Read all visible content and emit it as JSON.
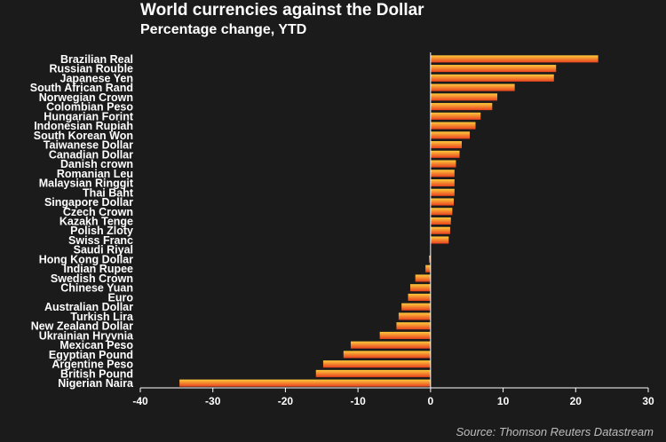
{
  "header": {
    "title": "World currencies against the Dollar",
    "subtitle": "Percentage change, YTD"
  },
  "footer": {
    "source": "Source: Thomson Reuters Datastream"
  },
  "colors": {
    "background": "#1b1b1b",
    "bar_light": "#ffc93c",
    "bar_dark": "#e8421f",
    "axis": "#ffffff"
  },
  "chart_data": {
    "type": "bar",
    "orientation": "horizontal",
    "title": "World currencies against the Dollar",
    "subtitle": "Percentage change, YTD",
    "xlabel": "",
    "ylabel": "",
    "xlim": [
      -40,
      30
    ],
    "xticks": [
      -40,
      -30,
      -20,
      -10,
      0,
      10,
      20,
      30
    ],
    "grid": false,
    "legend": "none",
    "categories": [
      "Brazilian Real",
      "Russian Rouble",
      "Japanese Yen",
      "South African Rand",
      "Norwegian Crown",
      "Colombian Peso",
      "Hungarian Forint",
      "Indonesian Rupiah",
      "South Korean Won",
      "Taiwanese Dollar",
      "Canadian Dollar",
      "Danish crown",
      "Romanian Leu",
      "Malaysian Ringgit",
      "Thai Baht",
      "Singapore Dollar",
      "Czech Crown",
      "Kazakh Tenge",
      "Polish Zloty",
      "Swiss Franc",
      "Saudi Riyal",
      "Hong Kong Dollar",
      "Indian Rupee",
      "Swedish Crown",
      "Chinese Yuan",
      "Euro",
      "Australian Dollar",
      "Turkish Lira",
      "New Zealand Dollar",
      "Ukrainian Hryvnia",
      "Mexican Peso",
      "Egyptian Pound",
      "Argentine Peso",
      "British Pound",
      "Nigerian Naira"
    ],
    "values": [
      23.1,
      17.3,
      17.0,
      11.6,
      9.2,
      8.5,
      6.9,
      6.2,
      5.4,
      4.3,
      4.0,
      3.5,
      3.3,
      3.3,
      3.3,
      3.2,
      3.0,
      2.8,
      2.7,
      2.5,
      0.0,
      -0.2,
      -0.7,
      -2.1,
      -2.8,
      -3.1,
      -4.0,
      -4.4,
      -4.7,
      -7.0,
      -11.0,
      -12.0,
      -14.8,
      -15.8,
      -34.6
    ]
  }
}
